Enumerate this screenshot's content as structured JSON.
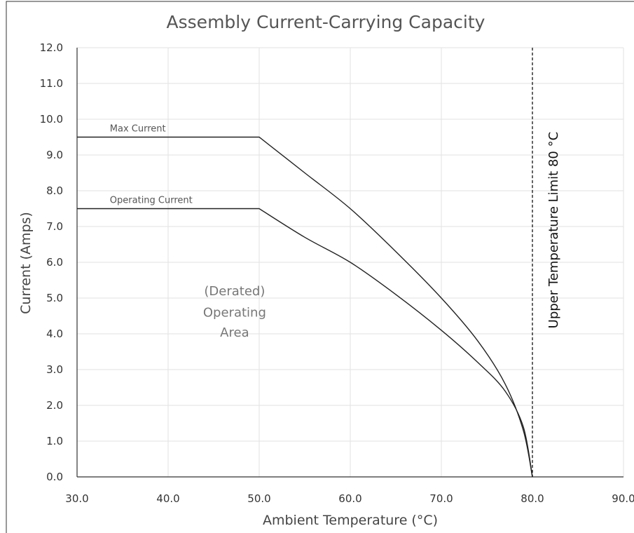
{
  "chart_data": {
    "type": "line",
    "title": "Assembly Current-Carrying Capacity",
    "xlabel": "Ambient Temperature (°C)",
    "ylabel": "Current (Amps)",
    "xlim": [
      30,
      90
    ],
    "ylim": [
      0,
      12
    ],
    "grid": true,
    "xticks": [
      "30.0",
      "40.0",
      "50.0",
      "60.0",
      "70.0",
      "80.0",
      "90.0"
    ],
    "yticks": [
      "0.0",
      "1.0",
      "2.0",
      "3.0",
      "4.0",
      "5.0",
      "6.0",
      "7.0",
      "8.0",
      "9.0",
      "10.0",
      "11.0",
      "12.0"
    ],
    "series": [
      {
        "name": "Max Current",
        "x": [
          30,
          50,
          55,
          60,
          65,
          70,
          74,
          77,
          79,
          80
        ],
        "y": [
          9.5,
          9.5,
          8.5,
          7.5,
          6.3,
          5.0,
          3.8,
          2.6,
          1.3,
          0
        ]
      },
      {
        "name": "Operating Current",
        "x": [
          30,
          50,
          55,
          60,
          65,
          70,
          74,
          77,
          79,
          80
        ],
        "y": [
          7.5,
          7.5,
          6.7,
          6.0,
          5.1,
          4.1,
          3.2,
          2.4,
          1.4,
          0
        ]
      }
    ],
    "annotations": {
      "area_lines": [
        "(Derated)",
        "Operating",
        "Area"
      ],
      "limit_label": "Upper Temperature Limit 80 °C",
      "limit_x": 80
    }
  }
}
